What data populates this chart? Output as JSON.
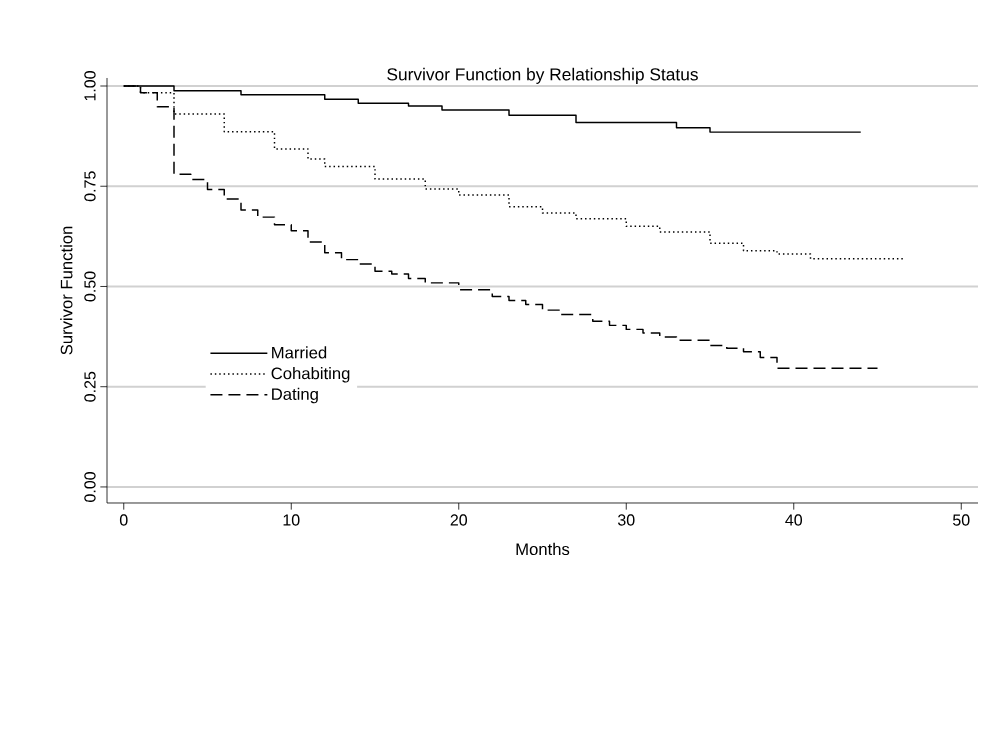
{
  "chart_data": {
    "type": "step",
    "title": "Survivor Function by Relationship Status",
    "xlabel": "Months",
    "ylabel": "Survivor Function",
    "xlim": [
      -1,
      51
    ],
    "ylim": [
      -0.04,
      1.02
    ],
    "xticks": [
      0,
      10,
      20,
      30,
      40,
      50
    ],
    "yticks": [
      {
        "value": 0,
        "label": "0.00"
      },
      {
        "value": 0.25,
        "label": "0.25"
      },
      {
        "value": 0.5,
        "label": "0.50"
      },
      {
        "value": 0.75,
        "label": "0.75"
      },
      {
        "value": 1,
        "label": "1.00"
      }
    ],
    "grid": "y",
    "legend": "left",
    "marker": "none",
    "series": [
      {
        "name": "Married",
        "color": "#000000",
        "line_style": "solid",
        "x": [
          0,
          3,
          7,
          12,
          14,
          17,
          19,
          23,
          27,
          33,
          35,
          44
        ],
        "values": [
          1.0,
          0.988,
          0.978,
          0.967,
          0.957,
          0.95,
          0.94,
          0.927,
          0.909,
          0.896,
          0.885,
          0.885
        ]
      },
      {
        "name": "Cohabiting",
        "color": "#000000",
        "line_style": "dotted",
        "x": [
          0,
          1,
          3,
          6,
          9,
          11,
          12,
          15,
          18,
          20,
          23,
          25,
          27,
          30,
          32,
          35,
          37,
          39,
          41,
          46.6
        ],
        "values": [
          1.0,
          0.983,
          0.93,
          0.886,
          0.843,
          0.818,
          0.799,
          0.768,
          0.743,
          0.728,
          0.699,
          0.683,
          0.669,
          0.65,
          0.636,
          0.608,
          0.589,
          0.581,
          0.569,
          0.569
        ]
      },
      {
        "name": "Dating",
        "color": "#000000",
        "line_style": "dashed",
        "x": [
          0,
          1,
          2,
          3,
          4,
          5,
          6,
          7,
          8,
          9,
          10,
          11,
          12,
          13,
          14,
          15,
          16,
          17,
          18,
          20,
          22,
          23,
          24,
          25,
          26,
          28,
          29,
          30,
          31,
          32,
          33,
          35,
          36,
          37,
          38,
          39,
          45
        ],
        "values": [
          1.0,
          0.983,
          0.948,
          0.78,
          0.767,
          0.742,
          0.718,
          0.691,
          0.673,
          0.654,
          0.639,
          0.611,
          0.584,
          0.567,
          0.556,
          0.538,
          0.531,
          0.52,
          0.509,
          0.492,
          0.475,
          0.465,
          0.455,
          0.441,
          0.43,
          0.413,
          0.403,
          0.393,
          0.384,
          0.374,
          0.366,
          0.353,
          0.346,
          0.337,
          0.323,
          0.296,
          0.296
        ]
      }
    ]
  }
}
